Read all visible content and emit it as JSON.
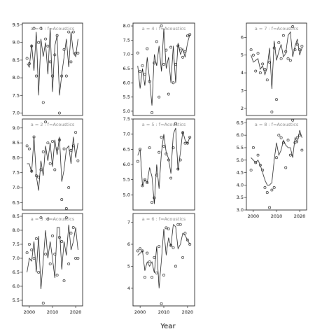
{
  "x_axis_label": "Year",
  "chart_data": [
    {
      "type": "line_points",
      "title": "a = 1 : f=Acoustics",
      "x": [
        1999,
        2000,
        2001,
        2002,
        2003,
        2004,
        2005,
        2006,
        2007,
        2008,
        2009,
        2010,
        2011,
        2012,
        2013,
        2014,
        2015,
        2016,
        2017,
        2018,
        2019,
        2020,
        2021
      ],
      "line_values": [
        8.4,
        8.3,
        8.95,
        8.2,
        9.3,
        7.5,
        9.1,
        8.6,
        9.0,
        8.1,
        9.4,
        7.6,
        8.9,
        9.2,
        7.5,
        8.1,
        8.6,
        9.1,
        8.3,
        9.3,
        8.7,
        8.6,
        9.1
      ],
      "point_values": [
        8.55,
        8.4,
        8.9,
        9.4,
        8.05,
        9.0,
        9.4,
        7.3,
        9.1,
        8.9,
        8.45,
        8.05,
        8.65,
        9.2,
        7.0,
        8.05,
        8.8,
        8.05,
        9.3,
        8.45,
        9.3,
        8.7,
        8.7
      ],
      "color": "#000000",
      "xlim": [
        1997,
        2023
      ],
      "ylim": [
        6.93,
        9.55
      ],
      "yticks": [
        {
          "value": 7.0,
          "label": "7.0"
        },
        {
          "value": 7.5,
          "label": "7.5"
        },
        {
          "value": 8.0,
          "label": "8.0"
        },
        {
          "value": 8.5,
          "label": "8.5"
        },
        {
          "value": 9.0,
          "label": "9.0"
        },
        {
          "value": 9.5,
          "label": "9.5"
        }
      ]
    },
    {
      "type": "line_points",
      "title": "a = 4 : f=Acoustics",
      "x": [
        1999,
        2000,
        2001,
        2002,
        2003,
        2004,
        2005,
        2006,
        2007,
        2008,
        2009,
        2010,
        2011,
        2012,
        2013,
        2014,
        2015,
        2016,
        2017,
        2018,
        2019,
        2020,
        2021
      ],
      "line_values": [
        6.6,
        5.8,
        6.5,
        5.9,
        6.9,
        6.1,
        5.2,
        7.0,
        6.6,
        7.3,
        6.4,
        7.9,
        6.5,
        6.9,
        6.0,
        7.3,
        6.0,
        7.4,
        7.0,
        7.2,
        6.9,
        7.4,
        7.7
      ],
      "point_values": [
        7.05,
        6.4,
        6.6,
        6.3,
        7.2,
        6.05,
        4.95,
        6.7,
        7.45,
        5.5,
        8.0,
        6.65,
        7.15,
        5.6,
        7.25,
        6.0,
        6.65,
        7.3,
        7.2,
        6.9,
        7.1,
        7.65,
        7.7
      ],
      "color": "#000000",
      "xlim": [
        1997,
        2023
      ],
      "ylim": [
        4.85,
        8.1
      ],
      "yticks": [
        {
          "value": 5.0,
          "label": "5.0"
        },
        {
          "value": 5.5,
          "label": "5.5"
        },
        {
          "value": 6.0,
          "label": "6.0"
        },
        {
          "value": 6.5,
          "label": "6.5"
        },
        {
          "value": 7.0,
          "label": "7.0"
        },
        {
          "value": 7.5,
          "label": "7.5"
        },
        {
          "value": 8.0,
          "label": "8.0"
        }
      ]
    },
    {
      "type": "line_points",
      "title": "a = 7 : f=Acoustics",
      "x": [
        1999,
        2000,
        2001,
        2002,
        2003,
        2004,
        2005,
        2006,
        2007,
        2008,
        2009,
        2010,
        2011,
        2012,
        2013,
        2014,
        2015,
        2016,
        2017,
        2018,
        2019,
        2020,
        2021
      ],
      "line_values": [
        5.0,
        4.6,
        4.7,
        4.8,
        4.2,
        4.4,
        3.9,
        4.3,
        5.4,
        3.1,
        5.8,
        4.7,
        5.2,
        5.6,
        4.9,
        5.1,
        6.1,
        6.3,
        4.9,
        5.5,
        5.9,
        5.0,
        5.4
      ],
      "point_values": [
        5.3,
        5.0,
        4.1,
        5.1,
        4.0,
        4.5,
        4.2,
        3.6,
        4.6,
        1.8,
        5.4,
        2.5,
        5.7,
        4.8,
        6.1,
        5.2,
        4.8,
        4.7,
        6.6,
        5.3,
        5.6,
        5.3,
        5.5
      ],
      "color": "#000000",
      "xlim": [
        1997,
        2023
      ],
      "ylim": [
        1.6,
        6.8
      ],
      "yticks": [
        2,
        3,
        4,
        5,
        6
      ]
    },
    {
      "type": "line_points",
      "title": "a = 2 : f=Acoustics",
      "x": [
        1999,
        2000,
        2001,
        2002,
        2003,
        2004,
        2005,
        2006,
        2007,
        2008,
        2009,
        2010,
        2011,
        2012,
        2013,
        2014,
        2015,
        2016,
        2017,
        2018,
        2019,
        2020,
        2021
      ],
      "line_values": [
        7.8,
        7.8,
        7.5,
        8.7,
        7.4,
        6.9,
        7.9,
        7.4,
        8.4,
        7.9,
        8.5,
        7.7,
        8.6,
        8.1,
        8.7,
        7.2,
        7.6,
        8.3,
        8.4,
        7.8,
        8.7,
        8.0,
        8.5
      ],
      "point_values": [
        8.4,
        8.3,
        7.55,
        8.7,
        7.4,
        7.35,
        7.6,
        8.2,
        9.2,
        8.5,
        7.8,
        8.55,
        7.6,
        8.3,
        8.6,
        6.6,
        8.3,
        6.3,
        7.0,
        8.25,
        8.4,
        8.85,
        7.9
      ],
      "color": "#000000",
      "xlim": [
        1997,
        2023
      ],
      "ylim": [
        6.25,
        9.3
      ],
      "yticks": [
        {
          "value": 6.5,
          "label": "6.5"
        },
        {
          "value": 7.0,
          "label": "7.0"
        },
        {
          "value": 7.5,
          "label": "7.5"
        },
        {
          "value": 8.0,
          "label": "8.0"
        },
        {
          "value": 8.5,
          "label": "8.5"
        },
        {
          "value": 9.0,
          "label": "9.0"
        }
      ]
    },
    {
      "type": "line_points",
      "title": "a = 5 : f=Acoustics",
      "x": [
        1999,
        2000,
        2001,
        2002,
        2003,
        2004,
        2005,
        2006,
        2007,
        2008,
        2009,
        2010,
        2011,
        2012,
        2013,
        2014,
        2015,
        2016,
        2017,
        2018,
        2019,
        2020,
        2021
      ],
      "line_values": [
        6.3,
        6.5,
        5.3,
        5.5,
        5.4,
        5.9,
        5.6,
        4.7,
        6.0,
        5.2,
        6.4,
        7.0,
        6.4,
        6.2,
        5.7,
        7.0,
        7.2,
        5.8,
        6.4,
        7.1,
        6.8,
        6.7,
        6.9
      ],
      "point_values": [
        6.1,
        6.5,
        5.3,
        5.5,
        5.4,
        6.55,
        4.75,
        4.9,
        5.65,
        6.4,
        6.9,
        6.6,
        6.35,
        6.15,
        5.55,
        6.55,
        7.35,
        5.85,
        6.15,
        7.05,
        6.7,
        6.7,
        6.9
      ],
      "color": "#000000",
      "xlim": [
        1997,
        2023
      ],
      "ylim": [
        4.5,
        7.5
      ],
      "yticks": [
        {
          "value": 5.0,
          "label": "5.0"
        },
        {
          "value": 5.5,
          "label": "5.5"
        },
        {
          "value": 6.0,
          "label": "6.0"
        },
        {
          "value": 6.5,
          "label": "6.5"
        },
        {
          "value": 7.0,
          "label": "7.0"
        },
        {
          "value": 7.5,
          "label": "7.5"
        }
      ]
    },
    {
      "type": "line_points",
      "title": "a = 8 : f=Acoustics",
      "x": [
        1999,
        2000,
        2001,
        2002,
        2003,
        2004,
        2005,
        2006,
        2007,
        2008,
        2009,
        2010,
        2011,
        2012,
        2013,
        2014,
        2015,
        2016,
        2017,
        2018,
        2019,
        2020,
        2021
      ],
      "line_values": [
        5.1,
        5.0,
        4.9,
        5.0,
        4.8,
        4.5,
        4.2,
        4.0,
        4.0,
        4.1,
        5.0,
        5.7,
        5.2,
        5.4,
        5.8,
        5.6,
        5.5,
        5.5,
        5.1,
        5.9,
        5.7,
        6.2,
        5.9
      ],
      "point_values": [
        4.6,
        5.5,
        4.9,
        5.2,
        4.8,
        4.6,
        3.9,
        3.7,
        3.1,
        3.8,
        3.9,
        5.1,
        6.0,
        5.9,
        5.7,
        4.7,
        5.8,
        5.2,
        6.6,
        5.7,
        5.9,
        6.0,
        5.4
      ],
      "color": "#000000",
      "xlim": [
        1997,
        2023
      ],
      "ylim": [
        3.0,
        6.65
      ],
      "yticks": [
        {
          "value": 3.0,
          "label": "3.0"
        },
        {
          "value": 3.5,
          "label": "3.5"
        },
        {
          "value": 4.0,
          "label": "4.0"
        },
        {
          "value": 4.5,
          "label": "4.5"
        },
        {
          "value": 5.0,
          "label": "5.0"
        },
        {
          "value": 5.5,
          "label": "5.5"
        },
        {
          "value": 6.0,
          "label": "6.0"
        },
        {
          "value": 6.5,
          "label": "6.5"
        }
      ],
      "xticks": [
        2000,
        2010,
        2020
      ]
    },
    {
      "type": "line_points",
      "title": "a = 3 : f=Acoustics",
      "x": [
        1999,
        2000,
        2001,
        2002,
        2003,
        2004,
        2005,
        2006,
        2007,
        2008,
        2009,
        2010,
        2011,
        2012,
        2013,
        2014,
        2015,
        2016,
        2017,
        2018,
        2019,
        2020,
        2021
      ],
      "line_values": [
        6.5,
        7.0,
        6.9,
        7.6,
        6.5,
        7.8,
        5.9,
        6.9,
        8.0,
        7.0,
        7.6,
        7.0,
        6.3,
        8.1,
        8.1,
        6.6,
        7.6,
        7.1,
        8.2,
        7.3,
        7.6,
        8.1,
        7.3
      ],
      "point_values": [
        7.2,
        7.5,
        7.3,
        7.0,
        7.7,
        6.5,
        8.45,
        5.4,
        7.15,
        8.4,
        6.8,
        7.8,
        7.15,
        6.4,
        7.75,
        7.6,
        6.2,
        8.45,
        6.8,
        7.9,
        8.1,
        7.0,
        7.0
      ],
      "color": "#000000",
      "xlim": [
        1997,
        2023
      ],
      "ylim": [
        5.3,
        8.6
      ],
      "yticks": [
        {
          "value": 5.5,
          "label": "5.5"
        },
        {
          "value": 6.0,
          "label": "6.0"
        },
        {
          "value": 6.5,
          "label": "6.5"
        },
        {
          "value": 7.0,
          "label": "7.0"
        },
        {
          "value": 7.5,
          "label": "7.5"
        },
        {
          "value": 8.0,
          "label": "8.0"
        },
        {
          "value": 8.5,
          "label": "8.5"
        }
      ],
      "xticks": [
        2000,
        2010,
        2020
      ]
    },
    {
      "type": "line_points",
      "title": "a = 6 : f=Acoustics",
      "x": [
        1999,
        2000,
        2001,
        2002,
        2003,
        2004,
        2005,
        2006,
        2007,
        2008,
        2009,
        2010,
        2011,
        2012,
        2013,
        2014,
        2015,
        2016,
        2017,
        2018,
        2019,
        2020,
        2021
      ],
      "line_values": [
        5.5,
        5.6,
        5.7,
        4.8,
        5.2,
        5.0,
        5.2,
        4.7,
        5.9,
        4.0,
        5.3,
        6.7,
        5.5,
        6.3,
        5.9,
        6.9,
        6.8,
        5.8,
        6.0,
        6.5,
        6.4,
        6.2,
        6.0
      ],
      "point_values": [
        5.7,
        5.8,
        5.7,
        4.5,
        5.6,
        5.2,
        4.5,
        5.4,
        4.7,
        5.9,
        3.3,
        4.6,
        6.75,
        6.7,
        5.95,
        5.85,
        5.0,
        6.9,
        6.9,
        5.4,
        6.5,
        6.2,
        6.0
      ],
      "color": "#000000",
      "xlim": [
        1997,
        2023
      ],
      "ylim": [
        3.2,
        7.4
      ],
      "yticks": [
        4,
        5,
        6,
        7
      ],
      "xticks": [
        2000,
        2010,
        2020
      ]
    }
  ]
}
